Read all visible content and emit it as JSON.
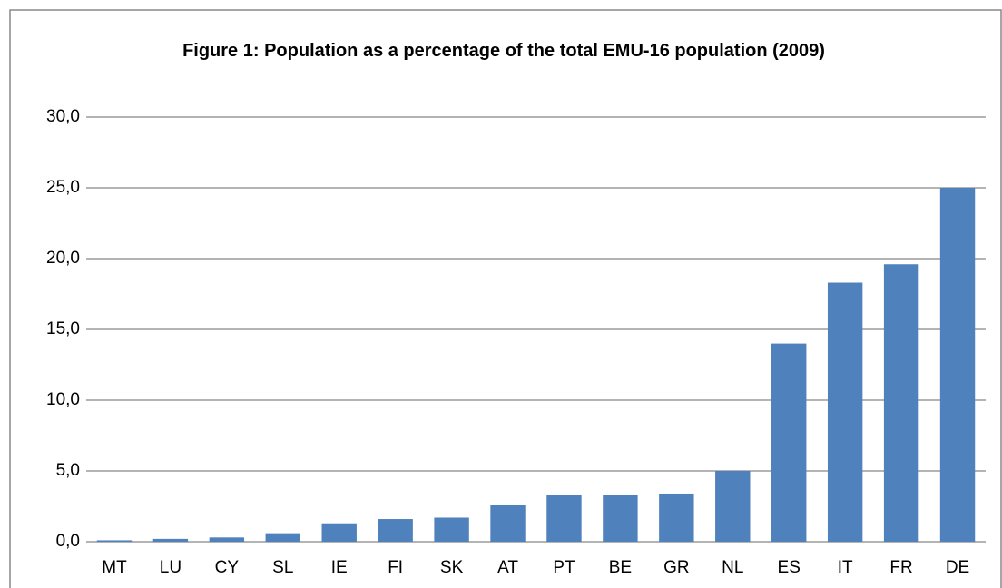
{
  "chart_data": {
    "type": "bar",
    "title": "Figure 1: Population as a percentage of the total EMU-16 population (2009)",
    "categories": [
      "MT",
      "LU",
      "CY",
      "SL",
      "IE",
      "FI",
      "SK",
      "AT",
      "PT",
      "BE",
      "GR",
      "NL",
      "ES",
      "IT",
      "FR",
      "DE"
    ],
    "values": [
      0.1,
      0.2,
      0.3,
      0.6,
      1.3,
      1.6,
      1.7,
      2.6,
      3.3,
      3.3,
      3.4,
      5.0,
      14.0,
      18.3,
      19.6,
      25.0
    ],
    "color": "#4f81bd",
    "ylim": [
      0,
      30
    ],
    "yticks": [
      {
        "value": 0,
        "label": "0,0"
      },
      {
        "value": 5,
        "label": "5,0"
      },
      {
        "value": 10,
        "label": "10,0"
      },
      {
        "value": 15,
        "label": "15,0"
      },
      {
        "value": 20,
        "label": "20,0"
      },
      {
        "value": 25,
        "label": "25,0"
      },
      {
        "value": 30,
        "label": "30,0"
      }
    ],
    "grid": true
  }
}
